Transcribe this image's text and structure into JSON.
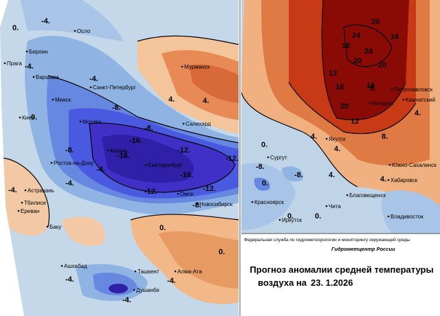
{
  "left_map": {
    "cities": [
      "Осло",
      "Берлин",
      "Прага",
      "Варшава",
      "Санкт-Петербург",
      "Мурманск",
      "Минск",
      "Киев",
      "Москва",
      "Салехард",
      "Казань",
      "Екатеринбург",
      "Ростов-на-Дону",
      "Астрахань",
      "Омск",
      "Новосибирск",
      "Тбилиси",
      "Ереван",
      "Баку",
      "Ашхабад",
      "Ташкент",
      "Алма-Ата",
      "Душанбе"
    ],
    "contour_labels": [
      "0.",
      "-4.",
      "-4.",
      "-4.",
      "4.",
      "4.",
      "-8.",
      "0.",
      "-8.",
      "-16.",
      "-16.",
      "-12.",
      "-8.",
      "-12.",
      "-16.",
      "-12.",
      "-12.",
      "-8.",
      "-4.",
      "-4.",
      "-4.",
      "0.",
      "0.",
      "-4.",
      "-4.",
      "-4."
    ]
  },
  "right_map": {
    "cities": [
      "Сургут",
      "Красноярск",
      "Иркутск",
      "Чита",
      "Якутск",
      "Магадан",
      "Петропавловск",
      "Камчатский",
      "Южно-Сахалинск",
      "Хабаровск",
      "Благовещенск",
      "Владивосток"
    ],
    "contour_labels": [
      "20",
      "24",
      "16",
      "16",
      "24",
      "20",
      "20",
      "12",
      "16",
      "16",
      "20",
      "12",
      "8.",
      "8.",
      "4.",
      "4.",
      "0.",
      "4.",
      "-8.",
      "-8.",
      "4.",
      "4.",
      "0.",
      "0.",
      "0."
    ]
  },
  "footer": {
    "agency": "Федеральная служба по гидрометеорологии и мониторингу окружающей среды",
    "center": "Гидрометцентр России",
    "title_line1": "Прогноз аномалии средней температуры",
    "title_line2": "воздуха на",
    "date": "23. 1.2026"
  }
}
